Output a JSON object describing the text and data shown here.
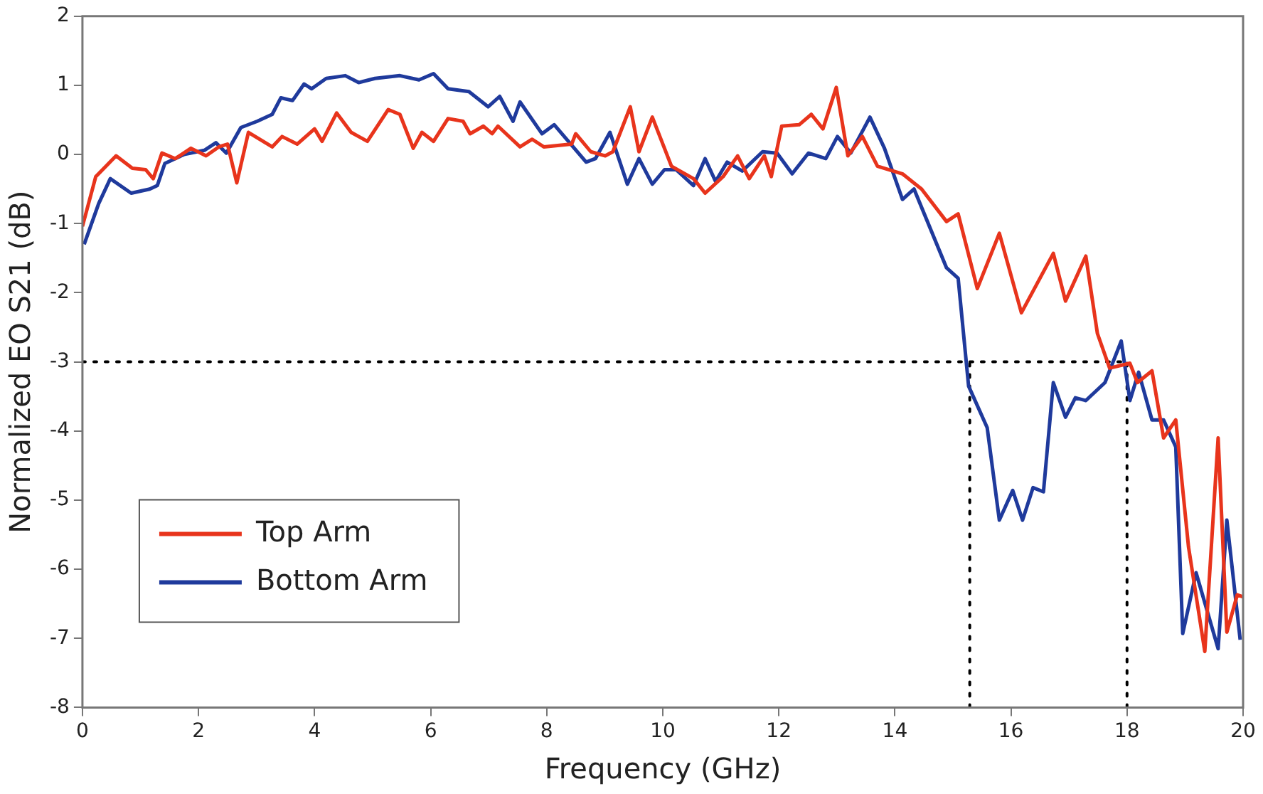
{
  "chart_data": {
    "type": "line",
    "xlabel": "Frequency (GHz)",
    "ylabel": "Normalized EO S21 (dB)",
    "xlim": [
      0,
      20
    ],
    "xticks": [
      0,
      2,
      4,
      6,
      8,
      10,
      12,
      14,
      16,
      18,
      20
    ],
    "ylim": [
      -8,
      2
    ],
    "yticks": [
      -8,
      -7,
      -6,
      -5,
      -4,
      -3,
      -2,
      -1,
      0,
      1,
      2
    ],
    "grid": false,
    "legend": "bottom left",
    "marker": "none",
    "line_style": "solid",
    "series": [
      {
        "name": "Top Arm",
        "color": "#e8341c",
        "x": [
          0.0,
          0.23,
          0.58,
          0.86,
          1.09,
          1.22,
          1.37,
          1.6,
          1.87,
          2.13,
          2.35,
          2.5,
          2.66,
          2.86,
          3.27,
          3.44,
          3.7,
          4.0,
          4.13,
          4.38,
          4.63,
          4.91,
          5.27,
          5.47,
          5.7,
          5.85,
          6.05,
          6.3,
          6.56,
          6.68,
          6.91,
          7.06,
          7.16,
          7.54,
          7.75,
          7.95,
          8.43,
          8.5,
          8.76,
          9.01,
          9.14,
          9.44,
          9.59,
          9.82,
          10.15,
          10.53,
          10.73,
          11.04,
          11.29,
          11.49,
          11.75,
          11.87,
          12.05,
          12.35,
          12.56,
          12.76,
          12.99,
          13.19,
          13.44,
          13.7,
          14.13,
          14.46,
          14.89,
          15.09,
          15.42,
          15.8,
          16.18,
          16.73,
          16.94,
          17.29,
          17.49,
          17.7,
          18.05,
          18.18,
          18.43,
          18.63,
          18.84,
          19.06,
          19.34,
          19.57,
          19.72,
          19.9,
          20.0
        ],
        "values": [
          -1.04,
          -0.32,
          -0.02,
          -0.2,
          -0.22,
          -0.35,
          0.02,
          -0.06,
          0.09,
          -0.02,
          0.11,
          0.15,
          -0.41,
          0.32,
          0.11,
          0.26,
          0.15,
          0.37,
          0.19,
          0.6,
          0.32,
          0.19,
          0.65,
          0.58,
          0.09,
          0.32,
          0.19,
          0.52,
          0.48,
          0.3,
          0.41,
          0.3,
          0.41,
          0.11,
          0.22,
          0.11,
          0.15,
          0.3,
          0.04,
          -0.02,
          0.04,
          0.69,
          0.04,
          0.54,
          -0.17,
          -0.35,
          -0.56,
          -0.32,
          -0.02,
          -0.35,
          -0.02,
          -0.32,
          0.41,
          0.43,
          0.58,
          0.37,
          0.97,
          -0.02,
          0.26,
          -0.17,
          -0.28,
          -0.5,
          -0.97,
          -0.86,
          -1.94,
          -1.14,
          -2.29,
          -1.43,
          -2.12,
          -1.47,
          -2.59,
          -3.09,
          -3.02,
          -3.3,
          -3.13,
          -4.1,
          -3.84,
          -5.68,
          -7.19,
          -4.1,
          -6.91,
          -6.37,
          -6.4
        ]
      },
      {
        "name": "Bottom Arm",
        "color": "#1f3a9c",
        "x": [
          0.03,
          0.28,
          0.48,
          0.84,
          1.16,
          1.29,
          1.42,
          1.75,
          2.1,
          2.3,
          2.48,
          2.73,
          3.01,
          3.27,
          3.42,
          3.62,
          3.82,
          3.95,
          4.2,
          4.53,
          4.76,
          5.04,
          5.47,
          5.8,
          6.05,
          6.3,
          6.66,
          6.99,
          7.19,
          7.42,
          7.54,
          7.92,
          8.13,
          8.68,
          8.84,
          9.09,
          9.39,
          9.59,
          9.82,
          10.03,
          10.23,
          10.53,
          10.73,
          10.91,
          11.11,
          11.37,
          11.72,
          11.97,
          12.23,
          12.51,
          12.81,
          13.01,
          13.24,
          13.57,
          13.82,
          14.13,
          14.33,
          14.89,
          15.09,
          15.27,
          15.59,
          15.8,
          16.03,
          16.2,
          16.38,
          16.56,
          16.73,
          16.94,
          17.11,
          17.29,
          17.62,
          17.9,
          18.05,
          18.2,
          18.43,
          18.63,
          18.84,
          18.96,
          19.19,
          19.57,
          19.72,
          19.95
        ],
        "values": [
          -1.3,
          -0.71,
          -0.35,
          -0.56,
          -0.5,
          -0.45,
          -0.13,
          0.0,
          0.06,
          0.17,
          0.02,
          0.39,
          0.48,
          0.58,
          0.82,
          0.78,
          1.02,
          0.95,
          1.1,
          1.14,
          1.04,
          1.1,
          1.14,
          1.08,
          1.17,
          0.95,
          0.91,
          0.69,
          0.84,
          0.48,
          0.76,
          0.3,
          0.43,
          -0.11,
          -0.06,
          0.32,
          -0.43,
          -0.06,
          -0.43,
          -0.22,
          -0.22,
          -0.45,
          -0.06,
          -0.39,
          -0.11,
          -0.24,
          0.04,
          0.02,
          -0.28,
          0.02,
          -0.06,
          0.26,
          0.02,
          0.54,
          0.09,
          -0.65,
          -0.5,
          -1.64,
          -1.79,
          -3.35,
          -3.95,
          -5.29,
          -4.86,
          -5.29,
          -4.82,
          -4.88,
          -3.3,
          -3.8,
          -3.52,
          -3.56,
          -3.3,
          -2.7,
          -3.56,
          -3.15,
          -3.84,
          -3.84,
          -4.23,
          -6.93,
          -6.05,
          -7.15,
          -5.29,
          -7.02
        ]
      },
      {
        "color": "#000000",
        "line_style": "dotted",
        "x": [
          0,
          18
        ],
        "values": [
          -3,
          -3
        ]
      },
      {
        "color": "#000000",
        "line_style": "dotted",
        "x": [
          15.29,
          15.29
        ],
        "values": [
          -8,
          -3
        ]
      },
      {
        "color": "#000000",
        "line_style": "dotted",
        "x": [
          18,
          18
        ],
        "values": [
          -8,
          -3
        ]
      }
    ]
  }
}
